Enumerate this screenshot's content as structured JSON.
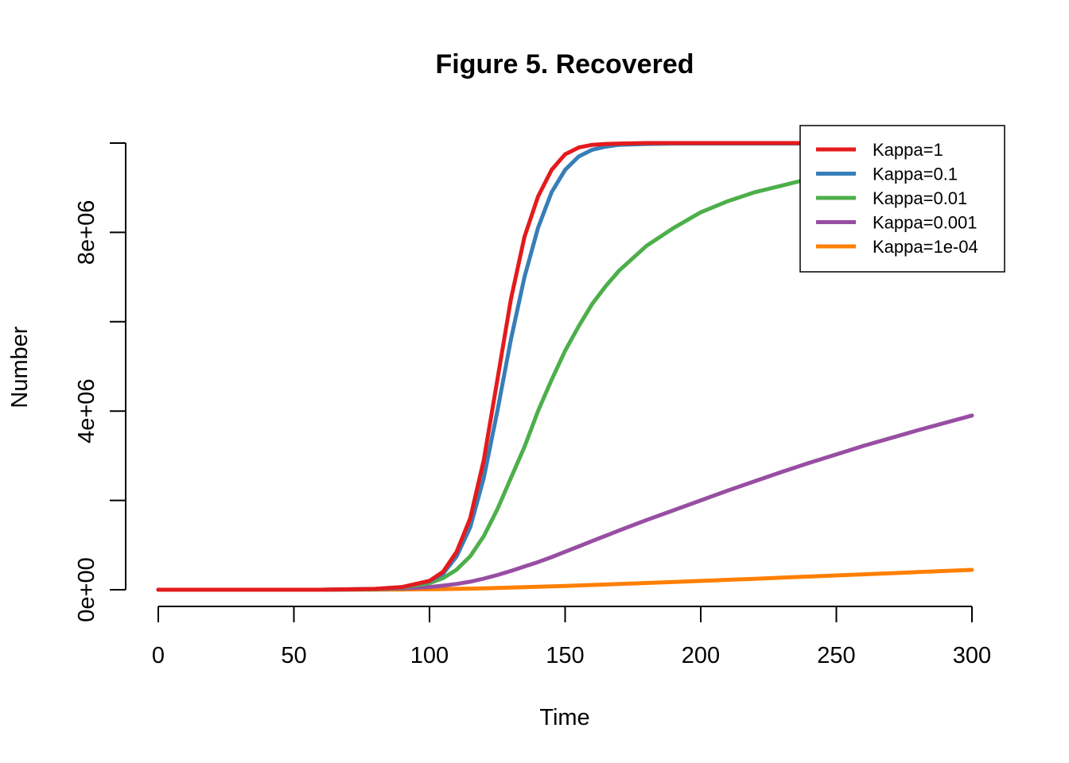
{
  "chart_data": {
    "type": "line",
    "title": "Figure 5. Recovered",
    "xlabel": "Time",
    "ylabel": "Number",
    "xlim": [
      0,
      300
    ],
    "ylim": [
      0,
      10000000
    ],
    "x_ticks": [
      0,
      50,
      100,
      150,
      200,
      250,
      300
    ],
    "x_tick_labels": [
      "0",
      "50",
      "100",
      "150",
      "200",
      "250",
      "300"
    ],
    "y_ticks": [
      0,
      2000000,
      4000000,
      6000000,
      8000000,
      10000000
    ],
    "y_tick_labels": [
      "0e+00",
      "",
      "4e+06",
      "",
      "8e+06",
      ""
    ],
    "grid": false,
    "legend_position": "top-right",
    "x": [
      0,
      60,
      80,
      90,
      100,
      105,
      110,
      115,
      120,
      125,
      130,
      135,
      140,
      145,
      150,
      155,
      160,
      165,
      170,
      180,
      190,
      200,
      210,
      220,
      230,
      240,
      250,
      260,
      280,
      300
    ],
    "series": [
      {
        "name": "Kappa=1",
        "color": "#E41A1C",
        "values": [
          0,
          0,
          20000,
          60000,
          200000,
          400000,
          850000,
          1600000,
          2900000,
          4700000,
          6500000,
          7900000,
          8800000,
          9400000,
          9750000,
          9900000,
          9960000,
          9980000,
          9990000,
          10000000,
          10000000,
          10000000,
          10000000,
          10000000,
          10000000,
          10000000,
          10000000,
          10000000,
          10000000,
          10000000
        ]
      },
      {
        "name": "Kappa=0.1",
        "color": "#377EB8",
        "values": [
          0,
          0,
          20000,
          60000,
          190000,
          360000,
          750000,
          1400000,
          2500000,
          4000000,
          5600000,
          7000000,
          8100000,
          8900000,
          9400000,
          9700000,
          9850000,
          9920000,
          9960000,
          9980000,
          9990000,
          9990000,
          9990000,
          9990000,
          9990000,
          9990000,
          9990000,
          9990000,
          9990000,
          9990000
        ]
      },
      {
        "name": "Kappa=0.01",
        "color": "#4DAF4A",
        "values": [
          0,
          0,
          15000,
          50000,
          150000,
          260000,
          450000,
          750000,
          1200000,
          1800000,
          2500000,
          3200000,
          4000000,
          4700000,
          5350000,
          5900000,
          6400000,
          6800000,
          7150000,
          7700000,
          8100000,
          8450000,
          8700000,
          8900000,
          9050000,
          9200000,
          9350000,
          9450000,
          9650000,
          9800000
        ]
      },
      {
        "name": "Kappa=0.001",
        "color": "#984EA3",
        "values": [
          0,
          0,
          10000,
          30000,
          60000,
          90000,
          130000,
          180000,
          250000,
          330000,
          420000,
          520000,
          620000,
          730000,
          850000,
          970000,
          1090000,
          1210000,
          1330000,
          1560000,
          1780000,
          2000000,
          2220000,
          2430000,
          2640000,
          2840000,
          3030000,
          3220000,
          3570000,
          3900000
        ]
      },
      {
        "name": "Kappa=1e-04",
        "color": "#FF7F00",
        "values": [
          0,
          0,
          2000,
          5000,
          10000,
          14000,
          19000,
          25000,
          32000,
          40000,
          48000,
          57000,
          66000,
          76000,
          86000,
          96000,
          107000,
          118000,
          129000,
          152000,
          175000,
          198000,
          222000,
          246000,
          270000,
          295000,
          320000,
          345000,
          395000,
          445000
        ]
      }
    ]
  }
}
